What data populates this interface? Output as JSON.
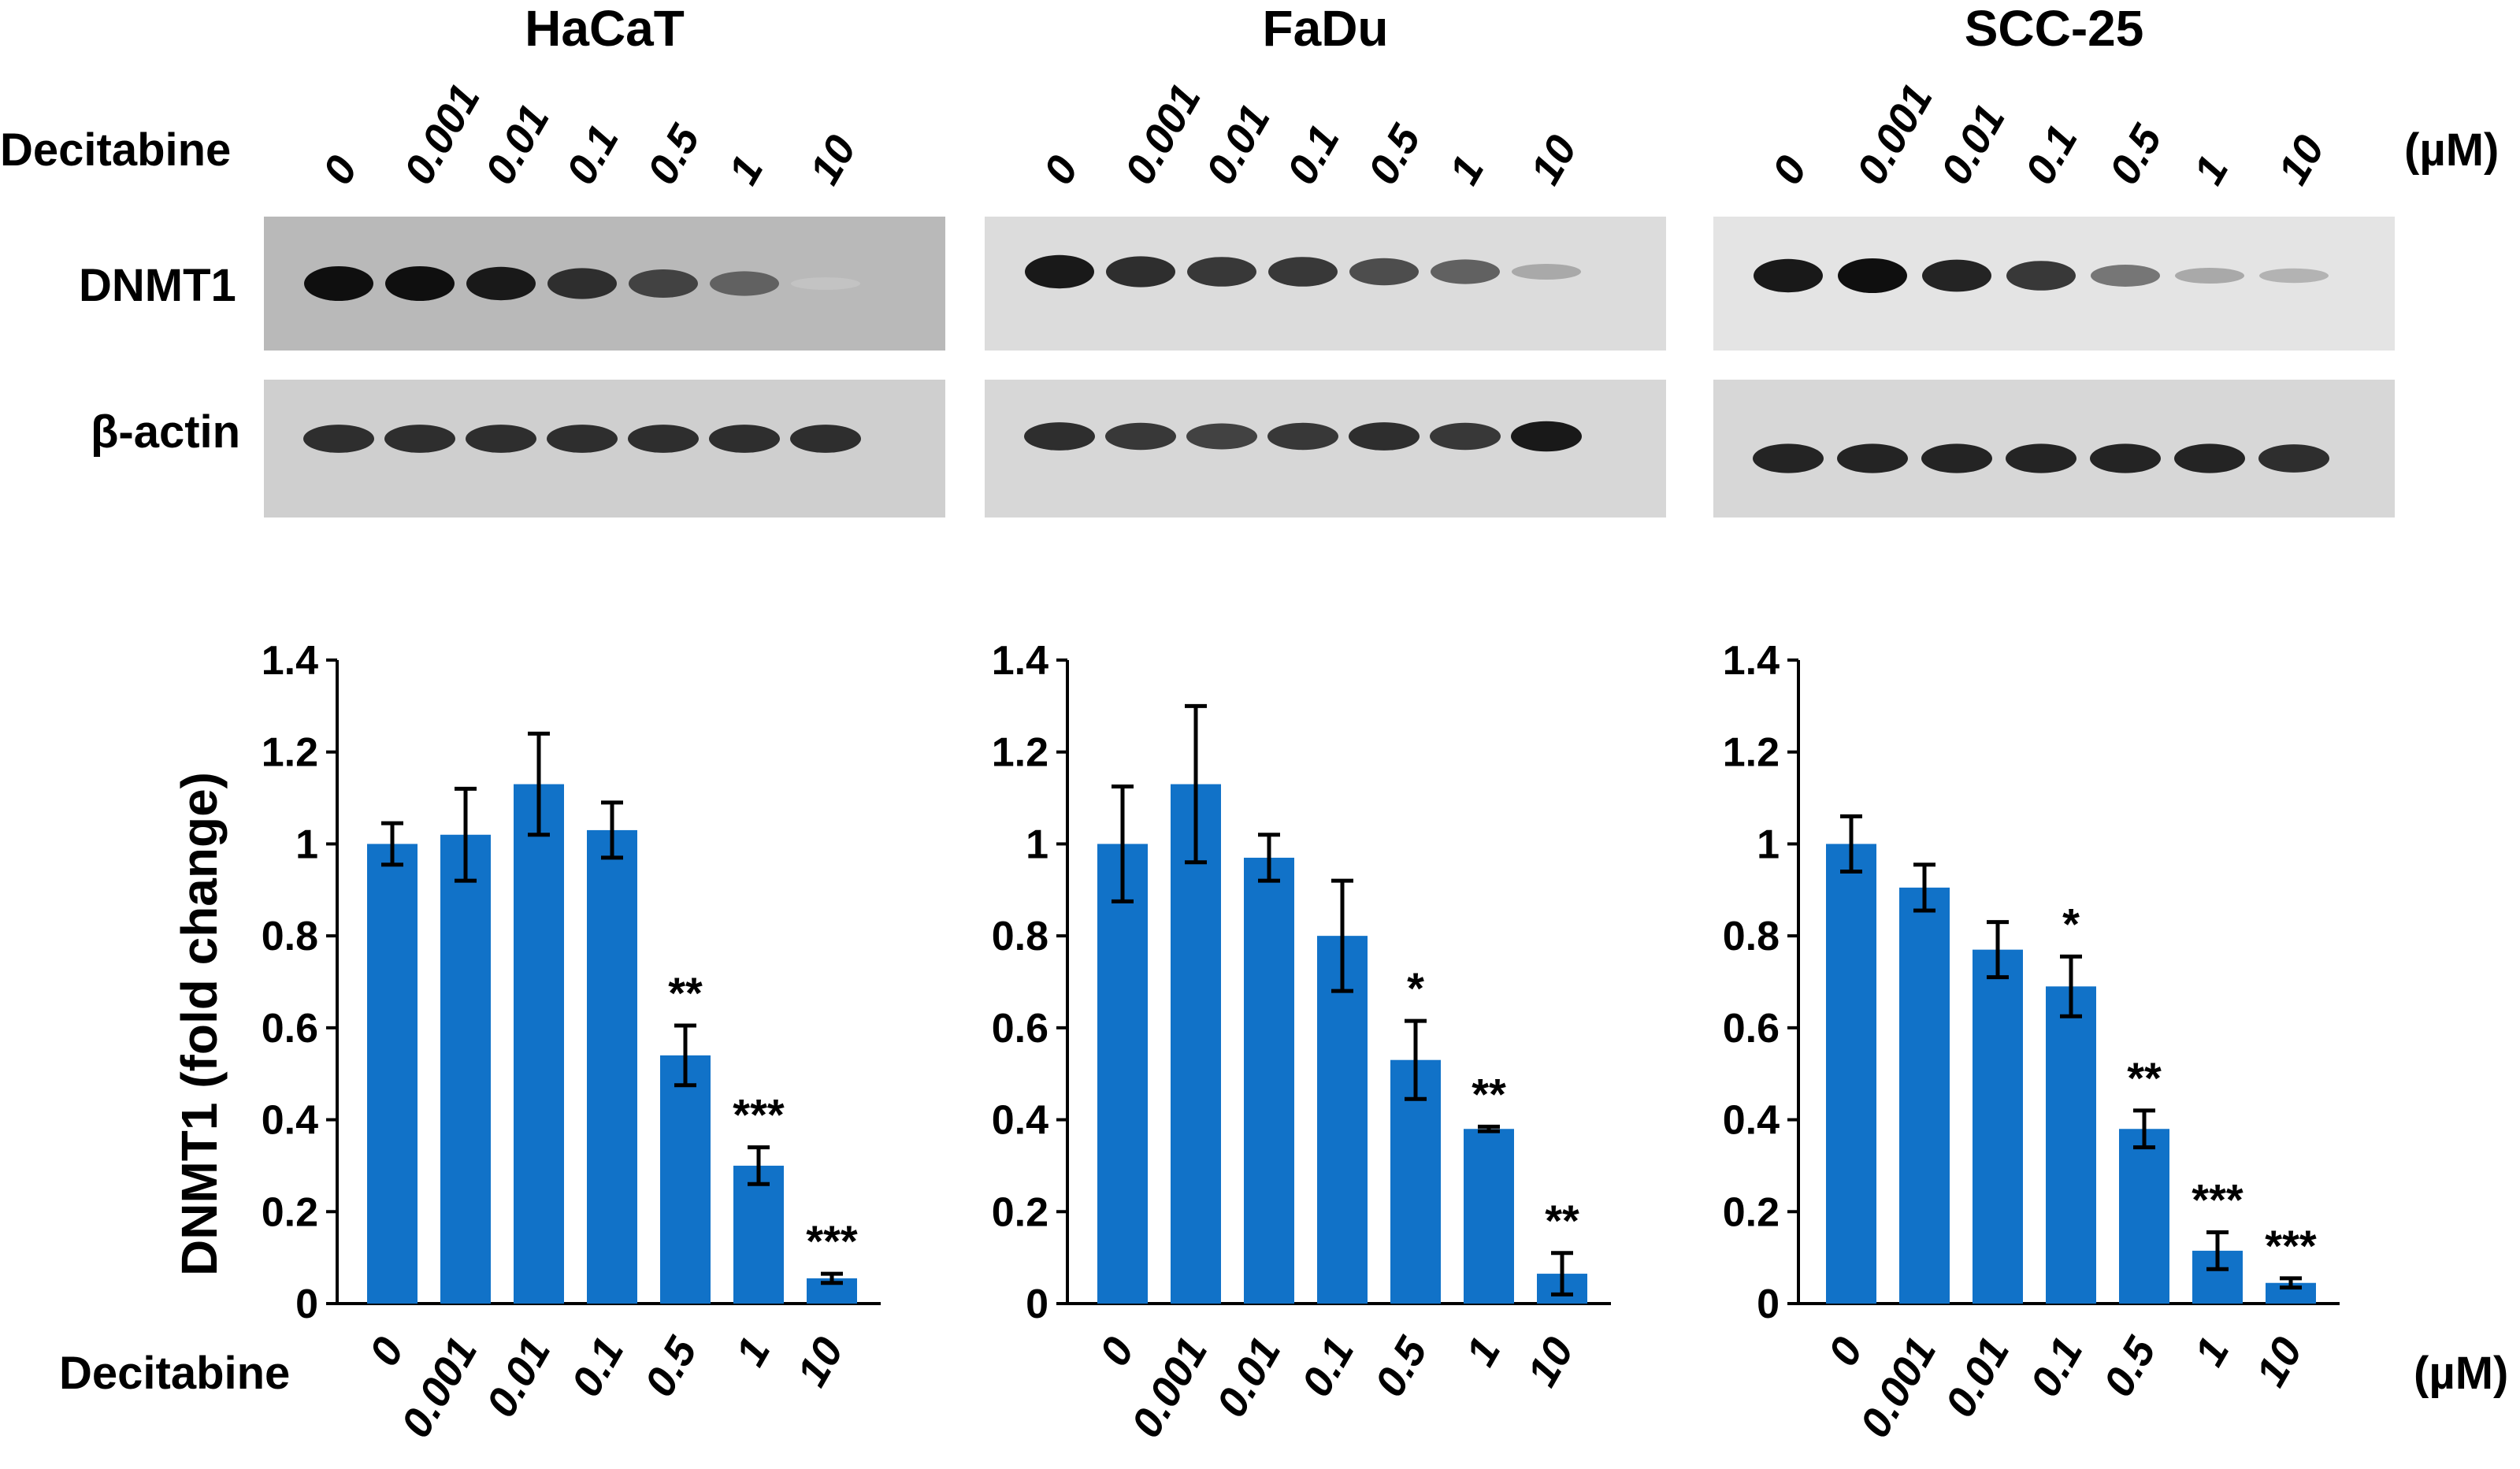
{
  "header": {
    "row_label": "Decitabine",
    "unit": "(µM)",
    "doses": [
      "0",
      "0.001",
      "0.01",
      "0.1",
      "0.5",
      "1",
      "10"
    ]
  },
  "blots": {
    "protein_labels": [
      "DNMT1",
      "β-actin"
    ],
    "panels": [
      {
        "cell_line": "HaCaT",
        "dnmt1_band_intensity": [
          1.0,
          1.0,
          0.95,
          0.85,
          0.75,
          0.6,
          0.12
        ],
        "actin_band_intensity": [
          0.85,
          0.85,
          0.85,
          0.85,
          0.85,
          0.85,
          0.85
        ]
      },
      {
        "cell_line": "FaDu",
        "dnmt1_band_intensity": [
          0.95,
          0.85,
          0.8,
          0.8,
          0.7,
          0.6,
          0.25
        ],
        "actin_band_intensity": [
          0.85,
          0.8,
          0.75,
          0.8,
          0.85,
          0.8,
          0.95
        ]
      },
      {
        "cell_line": "SCC-25",
        "dnmt1_band_intensity": [
          0.95,
          1.0,
          0.9,
          0.8,
          0.5,
          0.25,
          0.2
        ],
        "actin_band_intensity": [
          0.9,
          0.9,
          0.9,
          0.9,
          0.9,
          0.9,
          0.85
        ]
      }
    ]
  },
  "x_axis_label": "Decitabine",
  "x_axis_unit": "(µM)",
  "chart_data": [
    {
      "type": "bar",
      "title": "HaCaT",
      "ylabel": "DNMT1   (fold change)",
      "xlabel": "Decitabine",
      "categories": [
        "0",
        "0.001",
        "0.01",
        "0.1",
        "0.5",
        "1",
        "10"
      ],
      "values": [
        1.0,
        1.02,
        1.13,
        1.03,
        0.54,
        0.3,
        0.055
      ],
      "errors": [
        0.045,
        0.1,
        0.11,
        0.06,
        0.065,
        0.04,
        0.01
      ],
      "significance": [
        "",
        "",
        "",
        "",
        "**",
        "***",
        "***"
      ],
      "ylim": [
        0,
        1.4
      ],
      "yticks": [
        "0",
        "0.2",
        "0.4",
        "0.6",
        "0.8",
        "1",
        "1.2",
        "1.4"
      ],
      "bar_color": "#1172c8",
      "grid": false
    },
    {
      "type": "bar",
      "title": "FaDu",
      "ylabel": "",
      "xlabel": "",
      "categories": [
        "0",
        "0.001",
        "0.01",
        "0.1",
        "0.5",
        "1",
        "10"
      ],
      "values": [
        1.0,
        1.13,
        0.97,
        0.8,
        0.53,
        0.38,
        0.065
      ],
      "errors": [
        0.125,
        0.17,
        0.05,
        0.12,
        0.085,
        0.005,
        0.045
      ],
      "significance": [
        "",
        "",
        "",
        "",
        "*",
        "**",
        "**"
      ],
      "ylim": [
        0,
        1.4
      ],
      "yticks": [
        "0",
        "0.2",
        "0.4",
        "0.6",
        "0.8",
        "1",
        "1.2",
        "1.4"
      ],
      "bar_color": "#1172c8",
      "grid": false
    },
    {
      "type": "bar",
      "title": "SCC-25",
      "ylabel": "",
      "xlabel": "",
      "categories": [
        "0",
        "0.001",
        "0.01",
        "0.1",
        "0.5",
        "1",
        "10"
      ],
      "values": [
        1.0,
        0.905,
        0.77,
        0.69,
        0.38,
        0.115,
        0.045
      ],
      "errors": [
        0.06,
        0.05,
        0.06,
        0.065,
        0.04,
        0.04,
        0.01
      ],
      "significance": [
        "",
        "",
        "",
        "*",
        "**",
        "***",
        "***"
      ],
      "ylim": [
        0,
        1.4
      ],
      "yticks": [
        "0",
        "0.2",
        "0.4",
        "0.6",
        "0.8",
        "1",
        "1.2",
        "1.4"
      ],
      "bar_color": "#1172c8",
      "grid": false
    }
  ]
}
